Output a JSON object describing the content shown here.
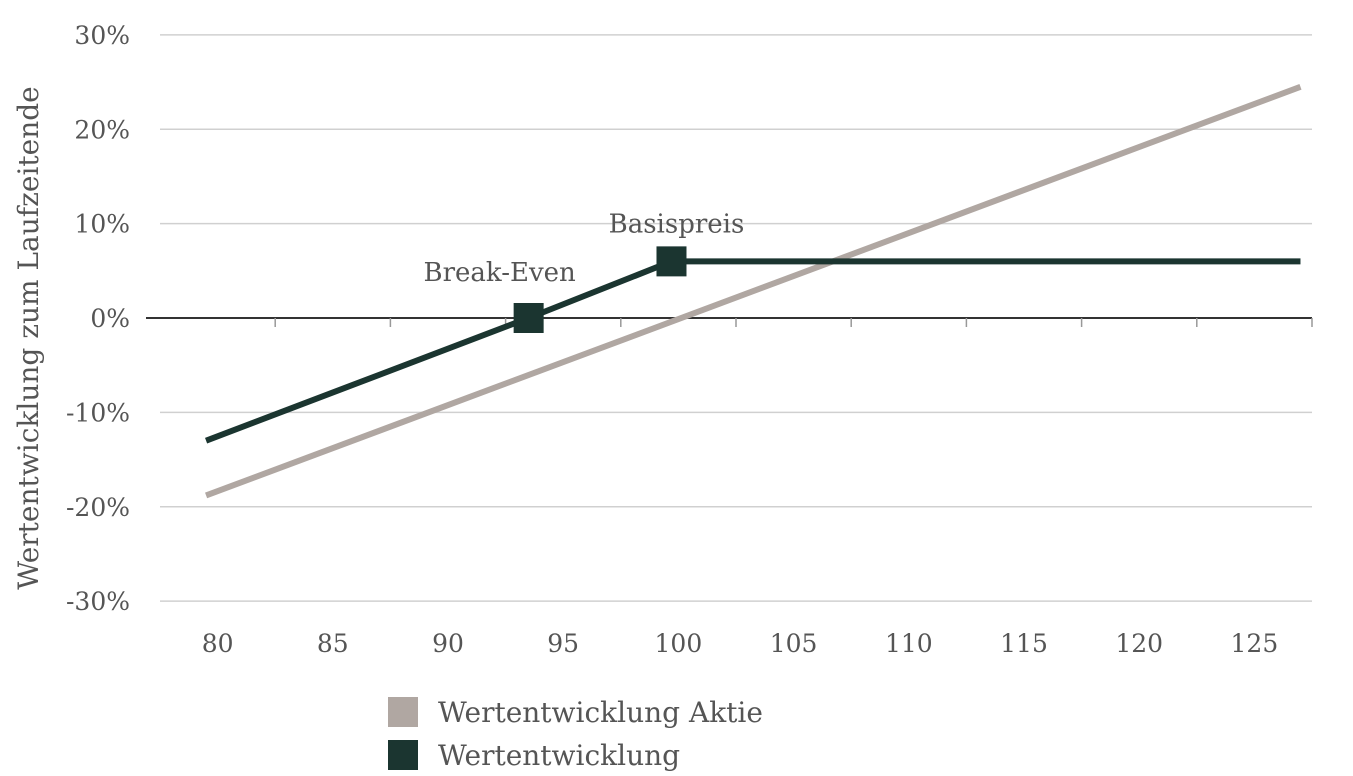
{
  "chart_data": {
    "type": "line",
    "ylabel": "Wertentwicklung zum Laufzeitende",
    "xlim": [
      77.5,
      127.5
    ],
    "ylim": [
      -32,
      32
    ],
    "x_ticks": [
      80,
      85,
      90,
      95,
      100,
      105,
      110,
      115,
      120,
      125
    ],
    "x_tick_labels": [
      "80",
      "85",
      "90",
      "95",
      "100",
      "105",
      "110",
      "115",
      "120",
      "125"
    ],
    "y_ticks": [
      30,
      20,
      10,
      0,
      -10,
      -20,
      -30
    ],
    "y_tick_labels": [
      "30%",
      "20%",
      "10%",
      "0%",
      "-10%",
      "-20%",
      "-30%"
    ],
    "grid": true,
    "legend_position": "bottom",
    "series": [
      {
        "name": "Wertentwicklung Aktie",
        "color": "#b0a7a2",
        "x": [
          79.5,
          127
        ],
        "y": [
          -18.8,
          24.5
        ]
      },
      {
        "name": "Wertentwicklung",
        "color": "#1b3530",
        "x": [
          79.5,
          93.5,
          99.7,
          127
        ],
        "y": [
          -13,
          0,
          6,
          6
        ]
      }
    ],
    "markers": [
      {
        "label": "Break-Even",
        "x": 93.5,
        "y": 0
      },
      {
        "label": "Basispreis",
        "x": 99.7,
        "y": 6
      }
    ]
  }
}
